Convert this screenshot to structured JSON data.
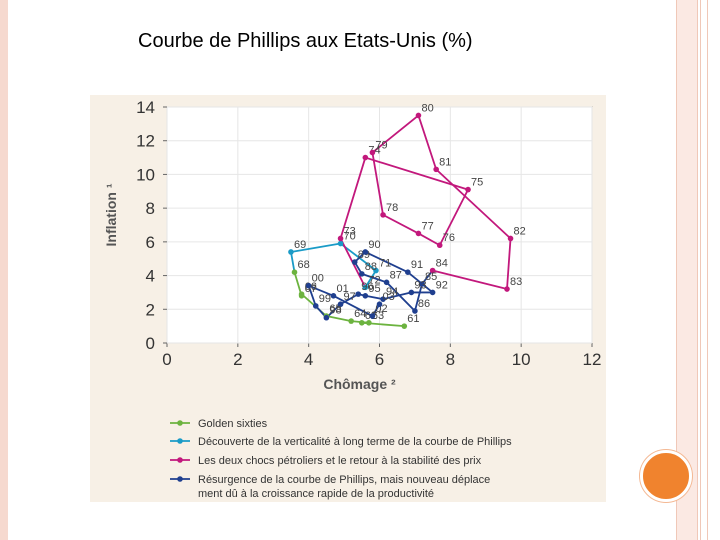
{
  "slide_title": "Courbe de Phillips aux Etats-Unis (%)",
  "colors": {
    "golden": "#6cb33f",
    "decouverte": "#1a9bc7",
    "chocs": "#c2187c",
    "resurgence": "#1f3f8f",
    "accent_circle": "#f0832e"
  },
  "chart_data": {
    "type": "line",
    "title": "Courbe de Phillips aux Etats-Unis (%)",
    "xlabel": "Chômage ²",
    "ylabel": "Inflation ¹",
    "xlim": [
      0,
      12
    ],
    "ylim": [
      0,
      14
    ],
    "xticks": [
      0,
      2,
      4,
      6,
      8,
      10,
      12
    ],
    "yticks": [
      0,
      2,
      4,
      6,
      8,
      10,
      12,
      14
    ],
    "grid": true,
    "legend_position": "bottom",
    "series": [
      {
        "name": "Golden sixties",
        "color": "#6cb33f",
        "points": [
          {
            "label": "61",
            "x": 6.7,
            "y": 1.0
          },
          {
            "label": "62",
            "x": 5.5,
            "y": 1.2
          },
          {
            "label": "63",
            "x": 5.7,
            "y": 1.2
          },
          {
            "label": "64",
            "x": 5.2,
            "y": 1.3
          },
          {
            "label": "65",
            "x": 4.5,
            "y": 1.6
          },
          {
            "label": "66",
            "x": 3.8,
            "y": 2.9
          },
          {
            "label": "67",
            "x": 3.8,
            "y": 2.8
          },
          {
            "label": "68",
            "x": 3.6,
            "y": 4.2
          }
        ]
      },
      {
        "name": "Découverte de la verticalité à long terme de la courbe de Phillips",
        "color": "#1a9bc7",
        "points": [
          {
            "label": "69",
            "x": 3.5,
            "y": 5.4
          },
          {
            "label": "70",
            "x": 4.9,
            "y": 5.9
          },
          {
            "label": "71",
            "x": 5.9,
            "y": 4.3
          },
          {
            "label": "72",
            "x": 5.6,
            "y": 3.3
          }
        ]
      },
      {
        "name": "Les deux chocs pétroliers et le retour à la stabilité des prix",
        "color": "#c2187c",
        "points": [
          {
            "label": "73",
            "x": 4.9,
            "y": 6.2
          },
          {
            "label": "74",
            "x": 5.6,
            "y": 11.0
          },
          {
            "label": "75",
            "x": 8.5,
            "y": 9.1
          },
          {
            "label": "76",
            "x": 7.7,
            "y": 5.8
          },
          {
            "label": "77",
            "x": 7.1,
            "y": 6.5
          },
          {
            "label": "78",
            "x": 6.1,
            "y": 7.6
          },
          {
            "label": "79",
            "x": 5.8,
            "y": 11.3
          },
          {
            "label": "80",
            "x": 7.1,
            "y": 13.5
          },
          {
            "label": "81",
            "x": 7.6,
            "y": 10.3
          },
          {
            "label": "82",
            "x": 9.7,
            "y": 6.2
          },
          {
            "label": "83",
            "x": 9.6,
            "y": 3.2
          },
          {
            "label": "84",
            "x": 7.5,
            "y": 4.3
          }
        ]
      },
      {
        "name": "Résurgence de la courbe de Phillips, mais nouveau déplacement dû à la croissance rapide de la productivité",
        "color": "#1f3f8f",
        "points": [
          {
            "label": "85",
            "x": 7.2,
            "y": 3.5
          },
          {
            "label": "86",
            "x": 7.0,
            "y": 1.9
          },
          {
            "label": "87",
            "x": 6.2,
            "y": 3.6
          },
          {
            "label": "88",
            "x": 5.5,
            "y": 4.1
          },
          {
            "label": "89",
            "x": 5.3,
            "y": 4.8
          },
          {
            "label": "90",
            "x": 5.6,
            "y": 5.4
          },
          {
            "label": "91",
            "x": 6.8,
            "y": 4.2
          },
          {
            "label": "92",
            "x": 7.5,
            "y": 3.0
          },
          {
            "label": "93",
            "x": 6.9,
            "y": 3.0
          },
          {
            "label": "94",
            "x": 6.1,
            "y": 2.6
          },
          {
            "label": "95",
            "x": 5.6,
            "y": 2.8
          },
          {
            "label": "96",
            "x": 5.4,
            "y": 2.9
          },
          {
            "label": "97",
            "x": 4.9,
            "y": 2.3
          },
          {
            "label": "98",
            "x": 4.5,
            "y": 1.5
          },
          {
            "label": "99",
            "x": 4.2,
            "y": 2.2
          },
          {
            "label": "00",
            "x": 4.0,
            "y": 3.4
          },
          {
            "label": "01",
            "x": 4.7,
            "y": 2.8
          },
          {
            "label": "02",
            "x": 5.8,
            "y": 1.6
          },
          {
            "label": "03",
            "x": 6.0,
            "y": 2.3
          }
        ]
      }
    ]
  }
}
